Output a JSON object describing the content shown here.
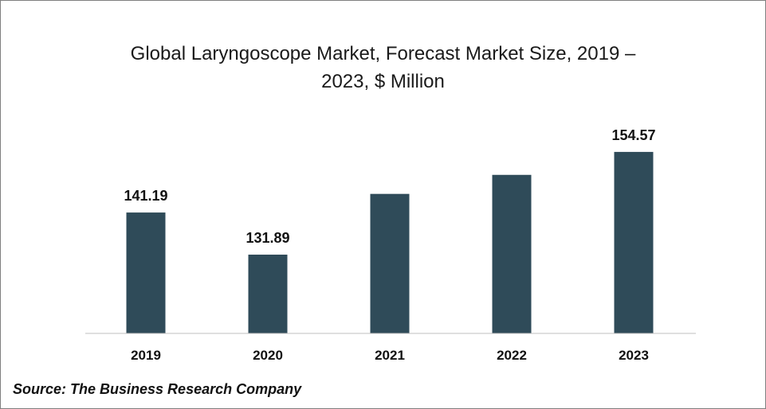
{
  "chart_data": {
    "type": "bar",
    "title_line1": "Global Laryngoscope Market, Forecast Market Size, 2019 –",
    "title_line2": "2023, $ Million",
    "categories": [
      "2019",
      "2020",
      "2021",
      "2022",
      "2023"
    ],
    "values": [
      141.19,
      131.89,
      145.3,
      149.5,
      154.57
    ],
    "data_labels": [
      "141.19",
      "131.89",
      "",
      "",
      "154.57"
    ],
    "bar_color": "#2f4b59",
    "axis_color": "#bfbfbf",
    "xlabel": "",
    "ylabel": "",
    "ylim": [
      114.5,
      160
    ],
    "grid": false,
    "legend": "none"
  },
  "source": "Source: The Business Research Company"
}
